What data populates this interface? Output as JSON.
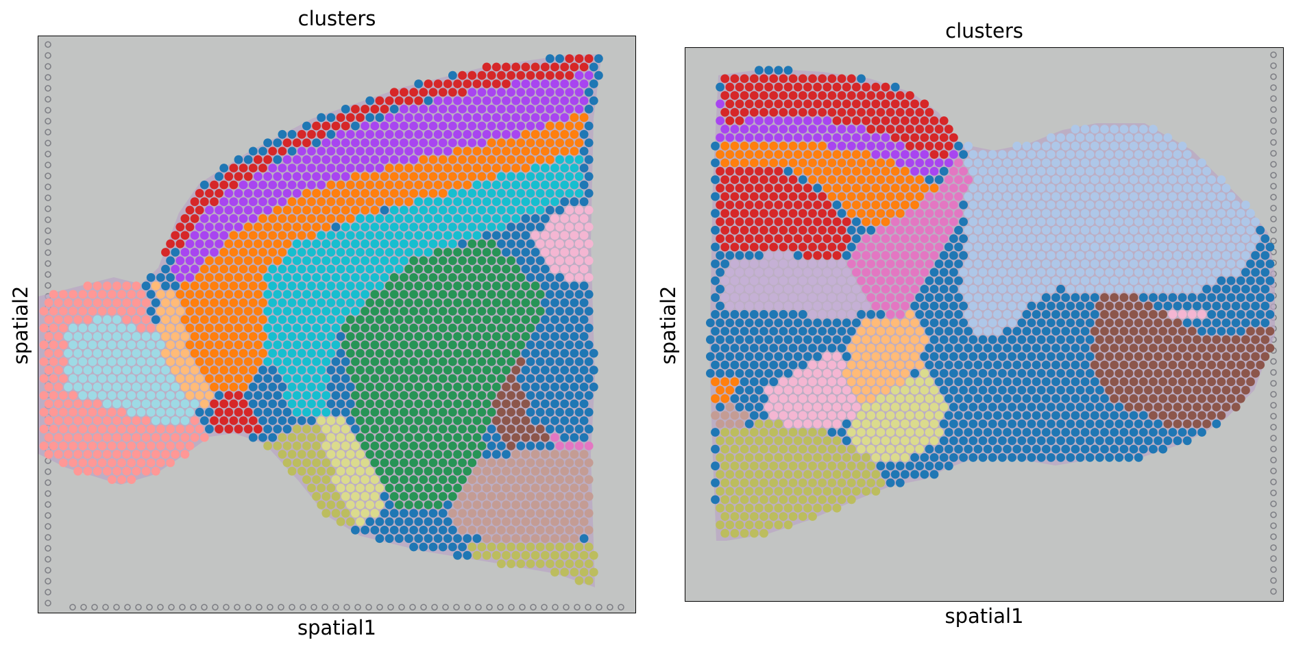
{
  "chart_data": [
    {
      "type": "scatter",
      "title": "clusters",
      "xlabel": "spatial1",
      "ylabel": "spatial2",
      "grid": false,
      "legend": "none",
      "background_color": "#c2c4c3",
      "tissue_color": "#b9a7c4",
      "cluster_colors": {
        "red": "#d62728",
        "purple": "#a845f0",
        "orange": "#ff7f0e",
        "cyan": "#17becf",
        "green": "#279456",
        "blue": "#1f77b4",
        "pink": "#f4b6d2",
        "magenta": "#e377c2",
        "brown": "#8c564b",
        "tan": "#c49c94",
        "olive": "#bcbd5e",
        "yellow": "#dbdb8d",
        "salmon": "#ff9896",
        "lightblue": "#9edae5",
        "peach": "#ffbb78"
      }
    },
    {
      "type": "scatter",
      "title": "clusters",
      "xlabel": "spatial1",
      "ylabel": "spatial2",
      "grid": false,
      "legend": "none",
      "background_color": "#c2c4c3",
      "tissue_color": "#b9a7c4",
      "cluster_colors": {
        "red": "#d62728",
        "purple": "#a845f0",
        "orange": "#ff7f0e",
        "cyan": "#17becf",
        "blue": "#1f77b4",
        "magenta": "#e377c2",
        "lavender": "#c5b0d5",
        "periwinkle": "#aec7e8",
        "lightgreen": "#98df8a",
        "brown": "#8c564b",
        "pink": "#f4b6d2",
        "peach": "#ffbb78",
        "yellow": "#dbdb8d",
        "olive": "#bcbd5e",
        "tan": "#c49c94"
      }
    }
  ]
}
